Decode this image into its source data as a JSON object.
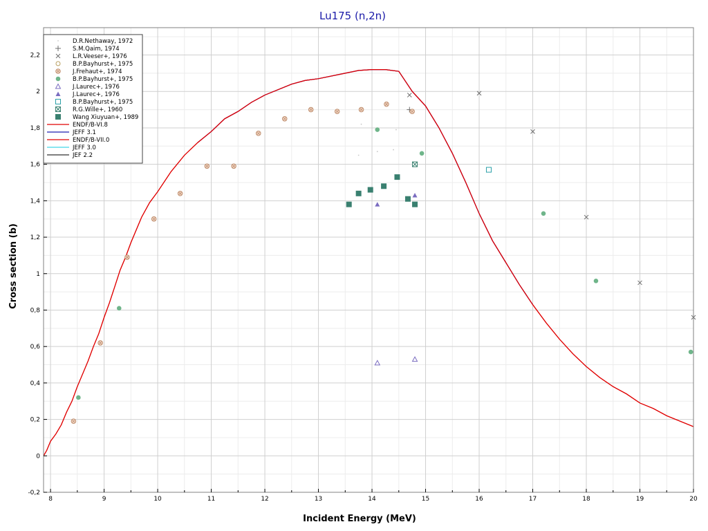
{
  "chart_data": {
    "type": "scatter",
    "title": "Lu175 (n,2n)",
    "xlabel": "Incident Energy (MeV)",
    "ylabel": "Cross section (b)",
    "xlim": [
      7.87,
      20
    ],
    "ylim": [
      -0.2,
      2.35
    ],
    "x_ticks": [
      8,
      9,
      10,
      11,
      12,
      13,
      14,
      15,
      16,
      17,
      18,
      19,
      20
    ],
    "x_tick_labels": [
      "8",
      "9",
      "10",
      "11",
      "12",
      "13",
      "14",
      "15",
      "16",
      "17",
      "18",
      "19",
      "20"
    ],
    "y_ticks": [
      -0.2,
      0,
      0.2,
      0.4,
      0.6,
      0.8,
      1,
      1.2,
      1.4,
      1.6,
      1.8,
      2,
      2.2
    ],
    "y_tick_labels": [
      "-0,2",
      "0",
      "0,2",
      "0,4",
      "0,6",
      "0,8",
      "1",
      "1,2",
      "1,4",
      "1,6",
      "1,8",
      "2",
      "2,2"
    ],
    "grid": true,
    "legend_position": "top-left",
    "series": [
      {
        "name": "D.R.Nethaway, 1972",
        "kind": "points",
        "marker": "dot",
        "color": "#c8c8c8",
        "points": [
          [
            13.8,
            1.82
          ],
          [
            14.1,
            1.67
          ],
          [
            14.4,
            1.68
          ],
          [
            14.45,
            1.79
          ],
          [
            13.75,
            1.65
          ]
        ]
      },
      {
        "name": "S.M.Qaim, 1974",
        "kind": "points",
        "marker": "plus",
        "color": "#6e6e6e",
        "points": [
          [
            14.7,
            1.9
          ]
        ]
      },
      {
        "name": "L.R.Veeser+, 1976",
        "kind": "points",
        "marker": "x",
        "color": "#6e6e6e",
        "points": [
          [
            14.7,
            1.98
          ],
          [
            16.0,
            1.99
          ],
          [
            17.0,
            1.78
          ],
          [
            18.0,
            1.31
          ],
          [
            19.0,
            0.95
          ],
          [
            20.0,
            0.76
          ]
        ]
      },
      {
        "name": "B.P.Bayhurst+, 1975",
        "kind": "points",
        "marker": "circle-open",
        "color": "#b8a060",
        "points": []
      },
      {
        "name": "J.Frehaut+, 1974",
        "kind": "points",
        "marker": "circle-hatched",
        "color": "#c09070",
        "points": [
          [
            8.43,
            0.19
          ],
          [
            8.93,
            0.62
          ],
          [
            9.43,
            1.09
          ],
          [
            9.93,
            1.3
          ],
          [
            10.42,
            1.44
          ],
          [
            10.92,
            1.59
          ],
          [
            11.42,
            1.59
          ],
          [
            11.88,
            1.77
          ],
          [
            12.37,
            1.85
          ],
          [
            12.86,
            1.9
          ],
          [
            13.35,
            1.89
          ],
          [
            13.8,
            1.9
          ],
          [
            14.27,
            1.93
          ],
          [
            14.75,
            1.89
          ]
        ]
      },
      {
        "name": "B.P.Bayhurst+, 1975",
        "kind": "points",
        "marker": "circle-filled",
        "color": "#6fb58a",
        "points": [
          [
            8.52,
            0.32
          ],
          [
            9.28,
            0.81
          ],
          [
            14.1,
            1.79
          ],
          [
            14.93,
            1.66
          ],
          [
            17.2,
            1.33
          ],
          [
            18.18,
            0.96
          ],
          [
            19.95,
            0.57
          ]
        ]
      },
      {
        "name": "J.Laurec+, 1976",
        "kind": "points",
        "marker": "triangle-open",
        "color": "#7a6cc0",
        "points": [
          [
            14.1,
            0.51
          ],
          [
            14.8,
            0.53
          ]
        ]
      },
      {
        "name": "J.Laurec+, 1976",
        "kind": "points",
        "marker": "triangle-filled",
        "color": "#7a6cc0",
        "points": [
          [
            14.1,
            1.38
          ],
          [
            14.8,
            1.43
          ]
        ]
      },
      {
        "name": "B.P.Bayhurst+, 1975",
        "kind": "points",
        "marker": "square-open",
        "color": "#2aa0a8",
        "points": [
          [
            16.18,
            1.57
          ]
        ]
      },
      {
        "name": "R.G.Wille+, 1960",
        "kind": "points",
        "marker": "square-crossed",
        "color": "#3a8070",
        "points": [
          [
            14.8,
            1.6
          ]
        ]
      },
      {
        "name": "Wang Xiuyuan+, 1989",
        "kind": "points",
        "marker": "square-filled",
        "color": "#3a8070",
        "points": [
          [
            13.57,
            1.38
          ],
          [
            13.75,
            1.44
          ],
          [
            13.97,
            1.46
          ],
          [
            14.22,
            1.48
          ],
          [
            14.47,
            1.53
          ],
          [
            14.67,
            1.41
          ],
          [
            14.8,
            1.38
          ]
        ]
      },
      {
        "name": "ENDF/B-VI.8",
        "kind": "line",
        "color": "#e00000",
        "points": [
          [
            7.87,
            0.0
          ],
          [
            7.93,
            0.03
          ],
          [
            8.0,
            0.08
          ],
          [
            8.1,
            0.12
          ],
          [
            8.2,
            0.17
          ],
          [
            8.3,
            0.24
          ],
          [
            8.4,
            0.3
          ],
          [
            8.5,
            0.38
          ],
          [
            8.6,
            0.45
          ],
          [
            8.7,
            0.52
          ],
          [
            8.8,
            0.6
          ],
          [
            8.9,
            0.67
          ],
          [
            9.0,
            0.76
          ],
          [
            9.1,
            0.84
          ],
          [
            9.2,
            0.93
          ],
          [
            9.3,
            1.02
          ],
          [
            9.4,
            1.09
          ],
          [
            9.5,
            1.17
          ],
          [
            9.7,
            1.31
          ],
          [
            9.85,
            1.39
          ],
          [
            10.0,
            1.45
          ],
          [
            10.25,
            1.56
          ],
          [
            10.5,
            1.65
          ],
          [
            10.75,
            1.72
          ],
          [
            11.0,
            1.78
          ],
          [
            11.25,
            1.85
          ],
          [
            11.5,
            1.89
          ],
          [
            11.75,
            1.94
          ],
          [
            12.0,
            1.98
          ],
          [
            12.5,
            2.04
          ],
          [
            12.75,
            2.06
          ],
          [
            13.0,
            2.07
          ],
          [
            13.5,
            2.1
          ],
          [
            13.75,
            2.115
          ],
          [
            14.0,
            2.12
          ],
          [
            14.25,
            2.12
          ],
          [
            14.5,
            2.11
          ],
          [
            14.75,
            2.0
          ],
          [
            15.0,
            1.92
          ],
          [
            15.25,
            1.8
          ],
          [
            15.5,
            1.66
          ],
          [
            15.75,
            1.5
          ],
          [
            16.0,
            1.33
          ],
          [
            16.25,
            1.18
          ],
          [
            16.5,
            1.06
          ],
          [
            16.75,
            0.94
          ],
          [
            17.0,
            0.83
          ],
          [
            17.25,
            0.73
          ],
          [
            17.5,
            0.64
          ],
          [
            17.75,
            0.56
          ],
          [
            18.0,
            0.49
          ],
          [
            18.25,
            0.43
          ],
          [
            18.5,
            0.38
          ],
          [
            18.75,
            0.34
          ],
          [
            19.0,
            0.29
          ],
          [
            19.25,
            0.26
          ],
          [
            19.5,
            0.22
          ],
          [
            19.75,
            0.19
          ],
          [
            20.0,
            0.16
          ]
        ]
      },
      {
        "name": "JEFF 3.1",
        "kind": "line",
        "color": "#1c1cb0",
        "points": [
          [
            10.75,
            1.72
          ],
          [
            11.0,
            1.78
          ],
          [
            11.25,
            1.85
          ],
          [
            11.5,
            1.89
          ],
          [
            11.75,
            1.94
          ],
          [
            12.0,
            1.98
          ],
          [
            12.5,
            2.04
          ],
          [
            12.75,
            2.06
          ],
          [
            13.0,
            2.07
          ],
          [
            13.5,
            2.1
          ],
          [
            13.75,
            2.115
          ],
          [
            14.0,
            2.12
          ],
          [
            14.25,
            2.12
          ],
          [
            14.5,
            2.11
          ],
          [
            14.75,
            2.0
          ],
          [
            15.0,
            1.92
          ],
          [
            15.25,
            1.8
          ],
          [
            15.5,
            1.66
          ],
          [
            15.75,
            1.5
          ],
          [
            16.0,
            1.33
          ],
          [
            16.25,
            1.18
          ],
          [
            16.5,
            1.06
          ],
          [
            16.75,
            0.94
          ],
          [
            17.0,
            0.83
          ]
        ]
      },
      {
        "name": "ENDF/B-VII.0",
        "kind": "line",
        "color": "#e00000",
        "points": [
          [
            7.87,
            0.0
          ],
          [
            7.93,
            0.03
          ],
          [
            8.0,
            0.08
          ],
          [
            8.1,
            0.12
          ],
          [
            8.2,
            0.17
          ],
          [
            8.3,
            0.24
          ],
          [
            8.4,
            0.3
          ],
          [
            8.5,
            0.38
          ],
          [
            8.6,
            0.45
          ],
          [
            8.7,
            0.52
          ],
          [
            8.8,
            0.6
          ],
          [
            8.9,
            0.67
          ],
          [
            9.0,
            0.76
          ],
          [
            9.1,
            0.84
          ],
          [
            9.2,
            0.93
          ],
          [
            9.3,
            1.02
          ],
          [
            9.4,
            1.09
          ],
          [
            9.5,
            1.17
          ],
          [
            9.7,
            1.31
          ],
          [
            9.85,
            1.39
          ],
          [
            10.0,
            1.45
          ],
          [
            10.25,
            1.56
          ],
          [
            10.5,
            1.65
          ],
          [
            10.75,
            1.72
          ],
          [
            11.0,
            1.78
          ],
          [
            11.25,
            1.85
          ],
          [
            11.5,
            1.89
          ],
          [
            11.75,
            1.94
          ],
          [
            12.0,
            1.98
          ],
          [
            12.5,
            2.04
          ],
          [
            12.75,
            2.06
          ],
          [
            13.0,
            2.07
          ],
          [
            13.5,
            2.1
          ],
          [
            13.75,
            2.115
          ],
          [
            14.0,
            2.12
          ],
          [
            14.25,
            2.12
          ],
          [
            14.5,
            2.11
          ],
          [
            14.75,
            2.0
          ],
          [
            15.0,
            1.92
          ],
          [
            15.25,
            1.8
          ],
          [
            15.5,
            1.66
          ],
          [
            15.75,
            1.5
          ],
          [
            16.0,
            1.33
          ],
          [
            16.25,
            1.18
          ],
          [
            16.5,
            1.06
          ],
          [
            16.75,
            0.94
          ],
          [
            17.0,
            0.83
          ],
          [
            17.25,
            0.73
          ],
          [
            17.5,
            0.64
          ],
          [
            17.75,
            0.56
          ],
          [
            18.0,
            0.49
          ],
          [
            18.25,
            0.43
          ],
          [
            18.5,
            0.38
          ],
          [
            18.75,
            0.34
          ],
          [
            19.0,
            0.29
          ],
          [
            19.25,
            0.26
          ],
          [
            19.5,
            0.22
          ],
          [
            19.75,
            0.19
          ],
          [
            20.0,
            0.16
          ]
        ]
      },
      {
        "name": "JEFF 3.0",
        "kind": "line",
        "color": "#40d8e8",
        "points": []
      },
      {
        "name": "JEF 2.2",
        "kind": "line",
        "color": "#303030",
        "points": []
      }
    ]
  }
}
